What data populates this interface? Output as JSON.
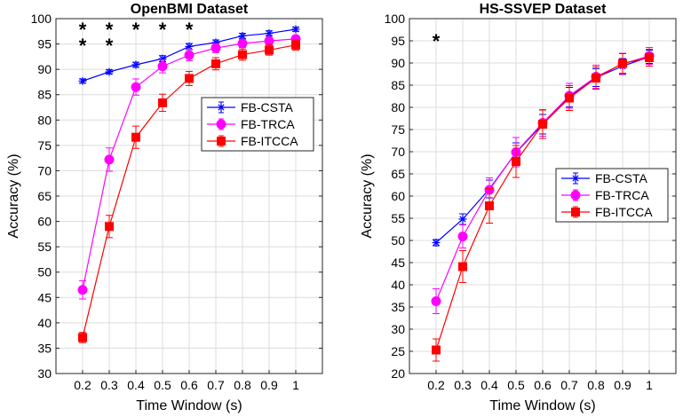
{
  "chart_data": [
    {
      "type": "line",
      "title": "OpenBMI Dataset",
      "xlabel": "Time Window (s)",
      "ylabel": "Accuracy (%)",
      "x": [
        0.2,
        0.3,
        0.4,
        0.5,
        0.6,
        0.7,
        0.8,
        0.9,
        1
      ],
      "x_tick_labels": [
        "0.2",
        "0.3",
        "0.4",
        "0.5",
        "0.6",
        "0.7",
        "0.8",
        "0.9",
        "1"
      ],
      "xlim": [
        0.1,
        1.1
      ],
      "ylim": [
        30,
        100
      ],
      "y_ticks": [
        30,
        35,
        40,
        45,
        50,
        55,
        60,
        65,
        70,
        75,
        80,
        85,
        90,
        95,
        100
      ],
      "grid": true,
      "legend_placement": "middle-right",
      "series": [
        {
          "name": "FB-CSTA",
          "color": "#0000ff",
          "marker": "asterisk",
          "values": [
            87.7,
            89.5,
            90.9,
            92.1,
            94.5,
            95.3,
            96.6,
            97.1,
            97.9
          ],
          "errors": [
            0.4,
            0.4,
            0.5,
            0.6,
            0.6,
            0.5,
            0.5,
            0.5,
            0.4
          ]
        },
        {
          "name": "FB-TRCA",
          "color": "#ff00ff",
          "marker": "circle",
          "values": [
            46.5,
            72.2,
            86.5,
            90.6,
            92.8,
            94.2,
            95.1,
            95.6,
            96.0
          ],
          "errors": [
            1.8,
            2.3,
            1.6,
            1.3,
            1.1,
            0.9,
            0.8,
            0.7,
            0.6
          ]
        },
        {
          "name": "FB-ITCCA",
          "color": "#ff0000",
          "marker": "square",
          "values": [
            37.1,
            59.0,
            76.6,
            83.4,
            88.2,
            91.1,
            92.9,
            93.8,
            94.8
          ],
          "errors": [
            1.0,
            2.2,
            2.2,
            1.7,
            1.4,
            1.2,
            1.1,
            1.0,
            1.0
          ]
        }
      ],
      "significance": [
        {
          "x": 0.2,
          "marks": [
            "*",
            "*"
          ]
        },
        {
          "x": 0.3,
          "marks": [
            "*",
            "*"
          ]
        },
        {
          "x": 0.4,
          "marks": [
            "*"
          ]
        },
        {
          "x": 0.5,
          "marks": [
            "*"
          ]
        },
        {
          "x": 0.6,
          "marks": [
            "*"
          ]
        }
      ]
    },
    {
      "type": "line",
      "title": "HS-SSVEP Dataset",
      "xlabel": "Time Window (s)",
      "ylabel": "Accuracy (%)",
      "x": [
        0.2,
        0.3,
        0.4,
        0.5,
        0.6,
        0.7,
        0.8,
        0.9,
        1
      ],
      "x_tick_labels": [
        "0.2",
        "0.3",
        "0.4",
        "0.5",
        "0.6",
        "0.7",
        "0.8",
        "0.9",
        "1"
      ],
      "xlim": [
        0.1,
        1.1
      ],
      "ylim": [
        20,
        100
      ],
      "y_ticks": [
        20,
        25,
        30,
        35,
        40,
        45,
        50,
        55,
        60,
        65,
        70,
        75,
        80,
        85,
        90,
        95,
        100
      ],
      "grid": true,
      "legend_placement": "middle-right",
      "series": [
        {
          "name": "FB-CSTA",
          "color": "#0000ff",
          "marker": "asterisk",
          "values": [
            49.5,
            54.8,
            61.6,
            69.8,
            76.2,
            82.3,
            86.7,
            89.3,
            91.4
          ],
          "errors": [
            0.7,
            1.2,
            2.0,
            2.2,
            2.2,
            2.2,
            2.0,
            1.7,
            1.5
          ]
        },
        {
          "name": "FB-TRCA",
          "color": "#ff00ff",
          "marker": "circle",
          "values": [
            36.3,
            50.9,
            61.4,
            69.9,
            76.5,
            82.6,
            86.9,
            89.8,
            91.6
          ],
          "errors": [
            2.8,
            2.6,
            2.7,
            3.3,
            3.0,
            2.8,
            2.6,
            2.4,
            1.9
          ]
        },
        {
          "name": "FB-ITCCA",
          "color": "#ff0000",
          "marker": "square",
          "values": [
            25.3,
            44.1,
            57.8,
            67.8,
            76.2,
            82.1,
            86.6,
            89.9,
            91.2
          ],
          "errors": [
            2.5,
            3.6,
            3.9,
            3.6,
            3.2,
            2.8,
            2.5,
            2.2,
            1.9
          ]
        }
      ],
      "significance": [
        {
          "x": 0.2,
          "marks": [
            "*"
          ]
        }
      ]
    }
  ]
}
